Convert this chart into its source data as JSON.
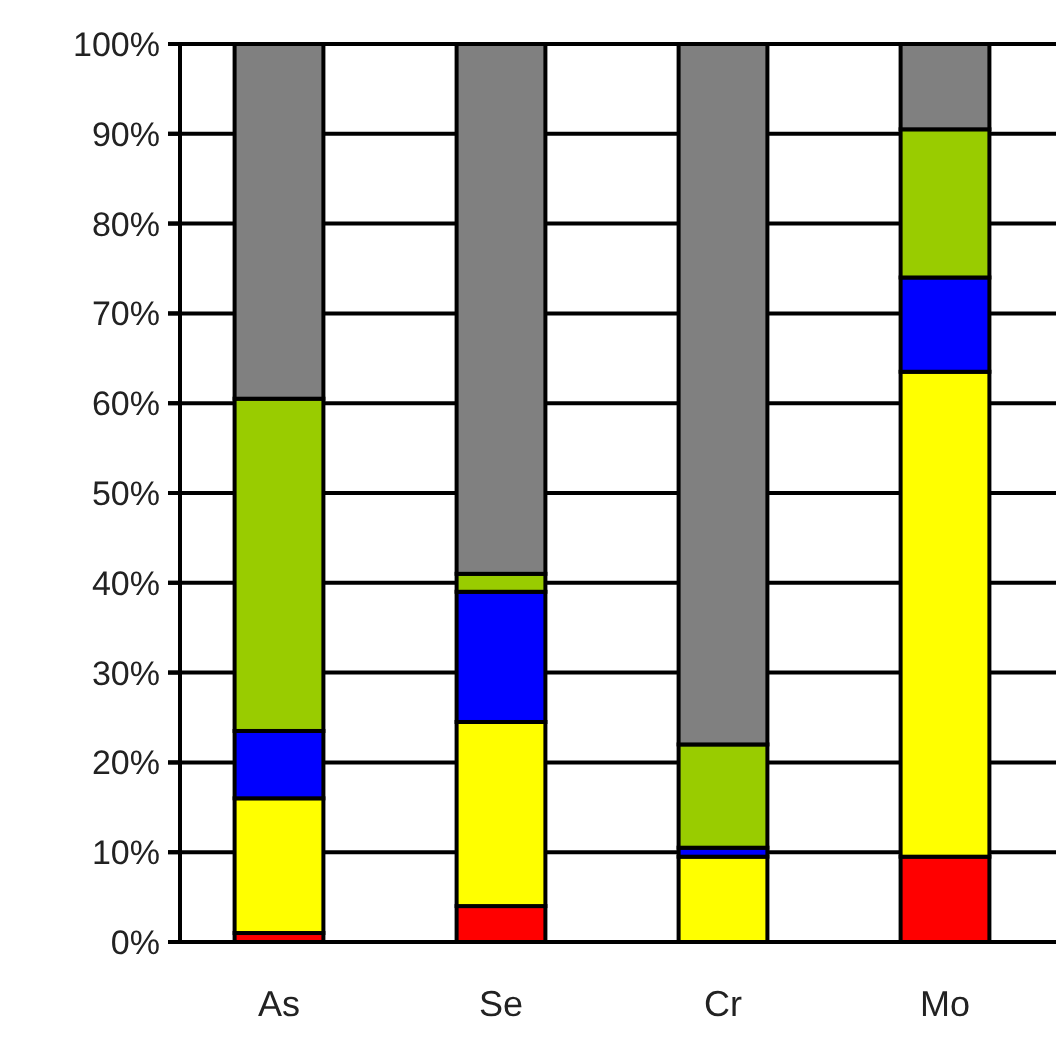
{
  "chart_data": {
    "type": "bar",
    "stacked": true,
    "categories": [
      "As",
      "Se",
      "Cr",
      "Mo"
    ],
    "series": [
      {
        "color": "#ff0000",
        "values": [
          1,
          4,
          null,
          9.5
        ]
      },
      {
        "color": "#ffff00",
        "values": [
          15,
          20.5,
          9.5,
          54
        ]
      },
      {
        "color": "#0000ff",
        "values": [
          7.5,
          14.5,
          1,
          10.5
        ]
      },
      {
        "color": "#99cc00",
        "values": [
          37,
          2,
          11.5,
          16.5
        ]
      },
      {
        "color": "#808080",
        "values": [
          39.5,
          59,
          78,
          9.5
        ]
      }
    ],
    "ylim": [
      0,
      100
    ],
    "yticks": [
      {
        "value": 0,
        "label": "0%"
      },
      {
        "value": 10,
        "label": "10%"
      },
      {
        "value": 20,
        "label": "20%"
      },
      {
        "value": 30,
        "label": "30%"
      },
      {
        "value": 40,
        "label": "40%"
      },
      {
        "value": 50,
        "label": "50%"
      },
      {
        "value": 60,
        "label": "60%"
      },
      {
        "value": 70,
        "label": "70%"
      },
      {
        "value": 80,
        "label": "80%"
      },
      {
        "value": 90,
        "label": "90%"
      },
      {
        "value": 100,
        "label": "100%"
      }
    ],
    "grid": "y"
  }
}
